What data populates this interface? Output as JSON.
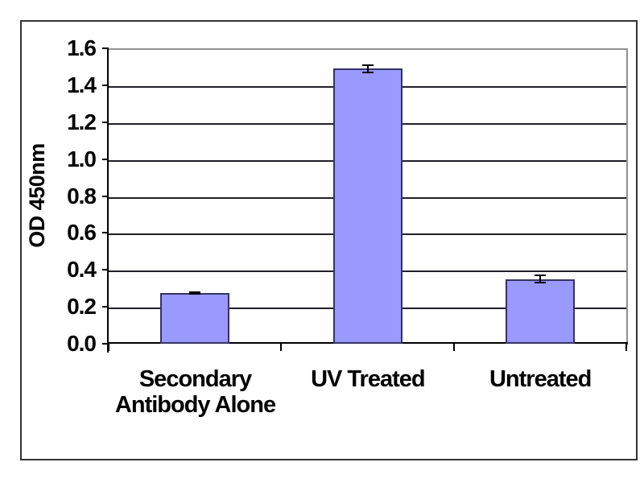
{
  "figure": {
    "background_color": "#ffffff",
    "border_color": "#333333"
  },
  "chart_data": {
    "type": "bar",
    "title": "",
    "xlabel": "",
    "ylabel": "OD 450nm",
    "categories": [
      "Secondary Antibody Alone",
      "UV Treated",
      "Untreated"
    ],
    "values": [
      0.275,
      1.49,
      0.35
    ],
    "errors": [
      0.005,
      0.02,
      0.02
    ],
    "ylim": [
      0.0,
      1.6
    ],
    "ytick_step": 0.2,
    "ytick_labels": [
      "0.0",
      "0.2",
      "0.4",
      "0.6",
      "0.8",
      "1.0",
      "1.2",
      "1.4",
      "1.6"
    ],
    "grid": true,
    "legend": null,
    "bar_fill_color": "#9999fe",
    "bar_border_color": "#333366",
    "gridline_color": "#1f1f28",
    "axis_color": "#000000",
    "plot_border_color": "#909090",
    "error_bar_color": "#000000"
  }
}
